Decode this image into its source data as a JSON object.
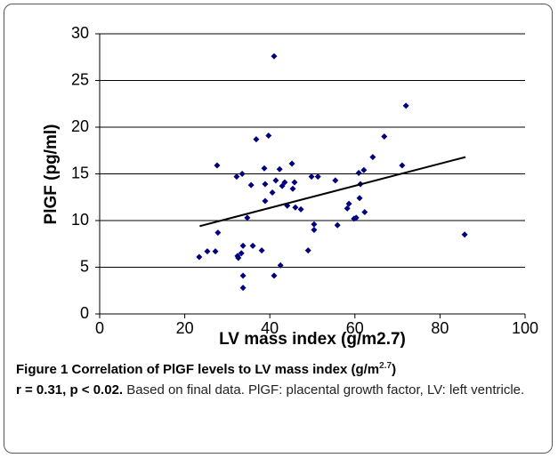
{
  "chart_data": {
    "type": "scatter",
    "x": [
      23.4,
      25.3,
      27.2,
      27.8,
      27.6,
      32.2,
      32.4,
      32.6,
      33.3,
      33.5,
      33.7,
      33.7,
      33.7,
      34.7,
      35.6,
      36.0,
      36.8,
      38.1,
      38.7,
      38.9,
      39.7,
      38.9,
      41.0,
      40.6,
      41.0,
      41.4,
      42.3,
      42.5,
      42.9,
      43.5,
      44.1,
      45.2,
      45.4,
      45.8,
      46.0,
      47.3,
      49.0,
      49.8,
      50.4,
      50.4,
      51.3,
      55.4,
      55.9,
      58.2,
      58.6,
      59.8,
      60.3,
      60.9,
      61.3,
      61.1,
      62.1,
      62.3,
      64.2,
      66.9,
      71.1,
      72.0,
      85.8
    ],
    "values": [
      6.1,
      6.7,
      6.7,
      8.7,
      15.9,
      14.7,
      6.2,
      6.0,
      6.5,
      15.0,
      7.3,
      4.1,
      2.8,
      10.3,
      13.8,
      7.3,
      18.7,
      6.8,
      15.6,
      13.9,
      19.1,
      12.1,
      27.6,
      13.0,
      4.1,
      14.3,
      15.5,
      5.2,
      13.7,
      14.1,
      11.6,
      16.1,
      13.4,
      14.1,
      11.4,
      11.2,
      6.8,
      14.7,
      9.6,
      9.0,
      14.7,
      14.3,
      9.5,
      11.3,
      11.8,
      10.2,
      10.3,
      15.1,
      13.9,
      12.4,
      15.4,
      10.9,
      16.8,
      19.0,
      15.9,
      22.3,
      8.5
    ],
    "color": "#00007f",
    "trendline": {
      "x": [
        23.5,
        86
      ],
      "values": [
        9.4,
        16.8
      ]
    },
    "xlabel": "LV mass index (g/m2.7)",
    "ylabel": "PlGF (pg/ml)",
    "xlim": [
      0,
      100
    ],
    "xticks": [
      0,
      20,
      40,
      60,
      80,
      100
    ],
    "ylim": [
      0,
      30
    ],
    "yticks": [
      0,
      5,
      10,
      15,
      20,
      25,
      30
    ],
    "grid": true
  },
  "figure_caption": {
    "label": "Figure 1 Correlation of PlGF levels to LV mass index (g/m",
    "label_sup": "2.7",
    "label_end": ")",
    "stats": "r = 0.31, p < 0.02.",
    "text": "Based on final data. PlGF: placental growth factor, LV: left ventricle."
  }
}
